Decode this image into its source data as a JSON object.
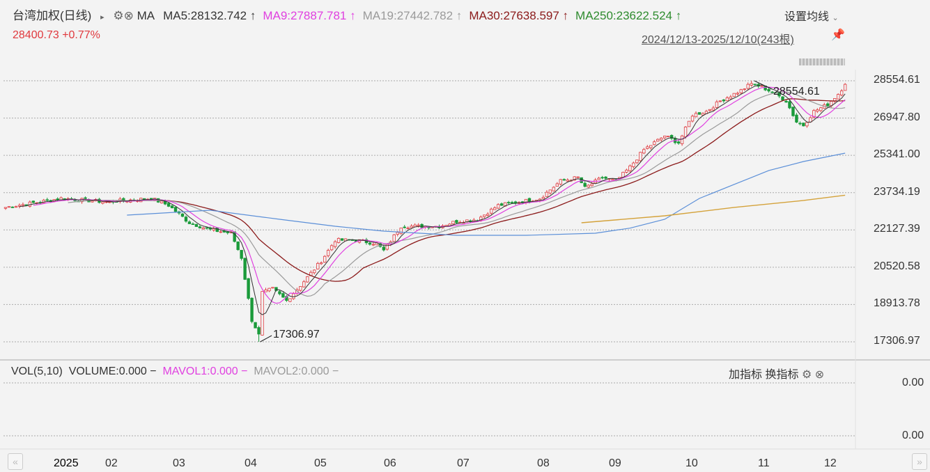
{
  "header": {
    "title": "台湾加权(日线)",
    "ma_label": "MA",
    "ma_values": [
      {
        "text": "MA5:28132.742 ↑",
        "color": "#333333"
      },
      {
        "text": "MA9:27887.781 ↑",
        "color": "#e040e0"
      },
      {
        "text": "MA19:27442.782 ↑",
        "color": "#9a9a9a"
      },
      {
        "text": "MA30:27638.597 ↑",
        "color": "#8b1a1a"
      },
      {
        "text": "MA250:23622.524 ↑",
        "color": "#2e8b2e"
      }
    ],
    "settings_label": "设置均线",
    "price": "28400.73",
    "change": "+0.77%",
    "range": "2024/12/13-2025/12/10(243根)"
  },
  "volume_panel": {
    "title": "VOL(5,10)",
    "volume": "VOLUME:0.000 −",
    "mavol1": "MAVOL1:0.000 −",
    "mavol2": "MAVOL2:0.000 −",
    "add_indicator": "加指标",
    "switch_indicator": "换指标",
    "y_labels": [
      "0.00",
      "0.00"
    ]
  },
  "colors": {
    "up": "#e0393e",
    "down": "#1a9a3a",
    "ma5": "#333333",
    "ma9": "#e040e0",
    "ma19": "#9a9a9a",
    "ma30": "#8b1a1a",
    "blue_ma": "#5b8fd8",
    "gold_ma": "#d4a23a"
  },
  "chart_data": {
    "type": "candlestick",
    "bars": 243,
    "y_ticks": [
      "28554.61",
      "26947.80",
      "25341.00",
      "23734.19",
      "22127.39",
      "20520.58",
      "18913.78",
      "17306.97"
    ],
    "ylim": [
      17306.97,
      28554.61
    ],
    "x_ticks": [
      "2025",
      "02",
      "03",
      "04",
      "05",
      "06",
      "07",
      "08",
      "09",
      "10",
      "11",
      "12"
    ],
    "high_annotation": "28554.61",
    "low_annotation": "17306.97",
    "close_samples": [
      [
        0,
        23100
      ],
      [
        1,
        23126
      ],
      [
        16,
        23486
      ],
      [
        29,
        23336
      ],
      [
        42,
        23486
      ],
      [
        47,
        23186
      ],
      [
        53,
        22436
      ],
      [
        59,
        22136
      ],
      [
        65,
        21986
      ],
      [
        68,
        20936
      ],
      [
        71,
        18238
      ],
      [
        73,
        17640
      ],
      [
        74,
        19437
      ],
      [
        77,
        19587
      ],
      [
        81,
        19078
      ],
      [
        85,
        19737
      ],
      [
        91,
        20787
      ],
      [
        95,
        21686
      ],
      [
        101,
        21686
      ],
      [
        107,
        21536
      ],
      [
        109,
        21236
      ],
      [
        114,
        22286
      ],
      [
        119,
        22286
      ],
      [
        125,
        22286
      ],
      [
        130,
        22496
      ],
      [
        136,
        22586
      ],
      [
        142,
        23186
      ],
      [
        148,
        23336
      ],
      [
        154,
        23486
      ],
      [
        160,
        24236
      ],
      [
        165,
        24386
      ],
      [
        167,
        23936
      ],
      [
        172,
        24386
      ],
      [
        176,
        24236
      ],
      [
        180,
        24836
      ],
      [
        184,
        25585
      ],
      [
        190,
        26185
      ],
      [
        194,
        25885
      ],
      [
        198,
        27085
      ],
      [
        202,
        27235
      ],
      [
        206,
        27685
      ],
      [
        212,
        28135
      ],
      [
        215,
        28435
      ],
      [
        218,
        28285
      ],
      [
        222,
        27985
      ],
      [
        225,
        27685
      ],
      [
        228,
        26785
      ],
      [
        230,
        26635
      ],
      [
        233,
        27235
      ],
      [
        237,
        27535
      ],
      [
        240,
        27985
      ],
      [
        242,
        28400.73
      ]
    ],
    "blue_line": [
      [
        35,
        22766
      ],
      [
        59,
        22976
      ],
      [
        79,
        22586
      ],
      [
        95,
        22286
      ],
      [
        109,
        22075
      ],
      [
        130,
        21896
      ],
      [
        150,
        21896
      ],
      [
        170,
        21986
      ],
      [
        180,
        22206
      ],
      [
        190,
        22586
      ],
      [
        200,
        23486
      ],
      [
        210,
        24086
      ],
      [
        220,
        24686
      ],
      [
        230,
        25075
      ],
      [
        242,
        25435
      ]
    ],
    "gold_line": [
      [
        166,
        22436
      ],
      [
        190,
        22736
      ],
      [
        210,
        23096
      ],
      [
        230,
        23396
      ],
      [
        242,
        23622.52
      ]
    ]
  }
}
